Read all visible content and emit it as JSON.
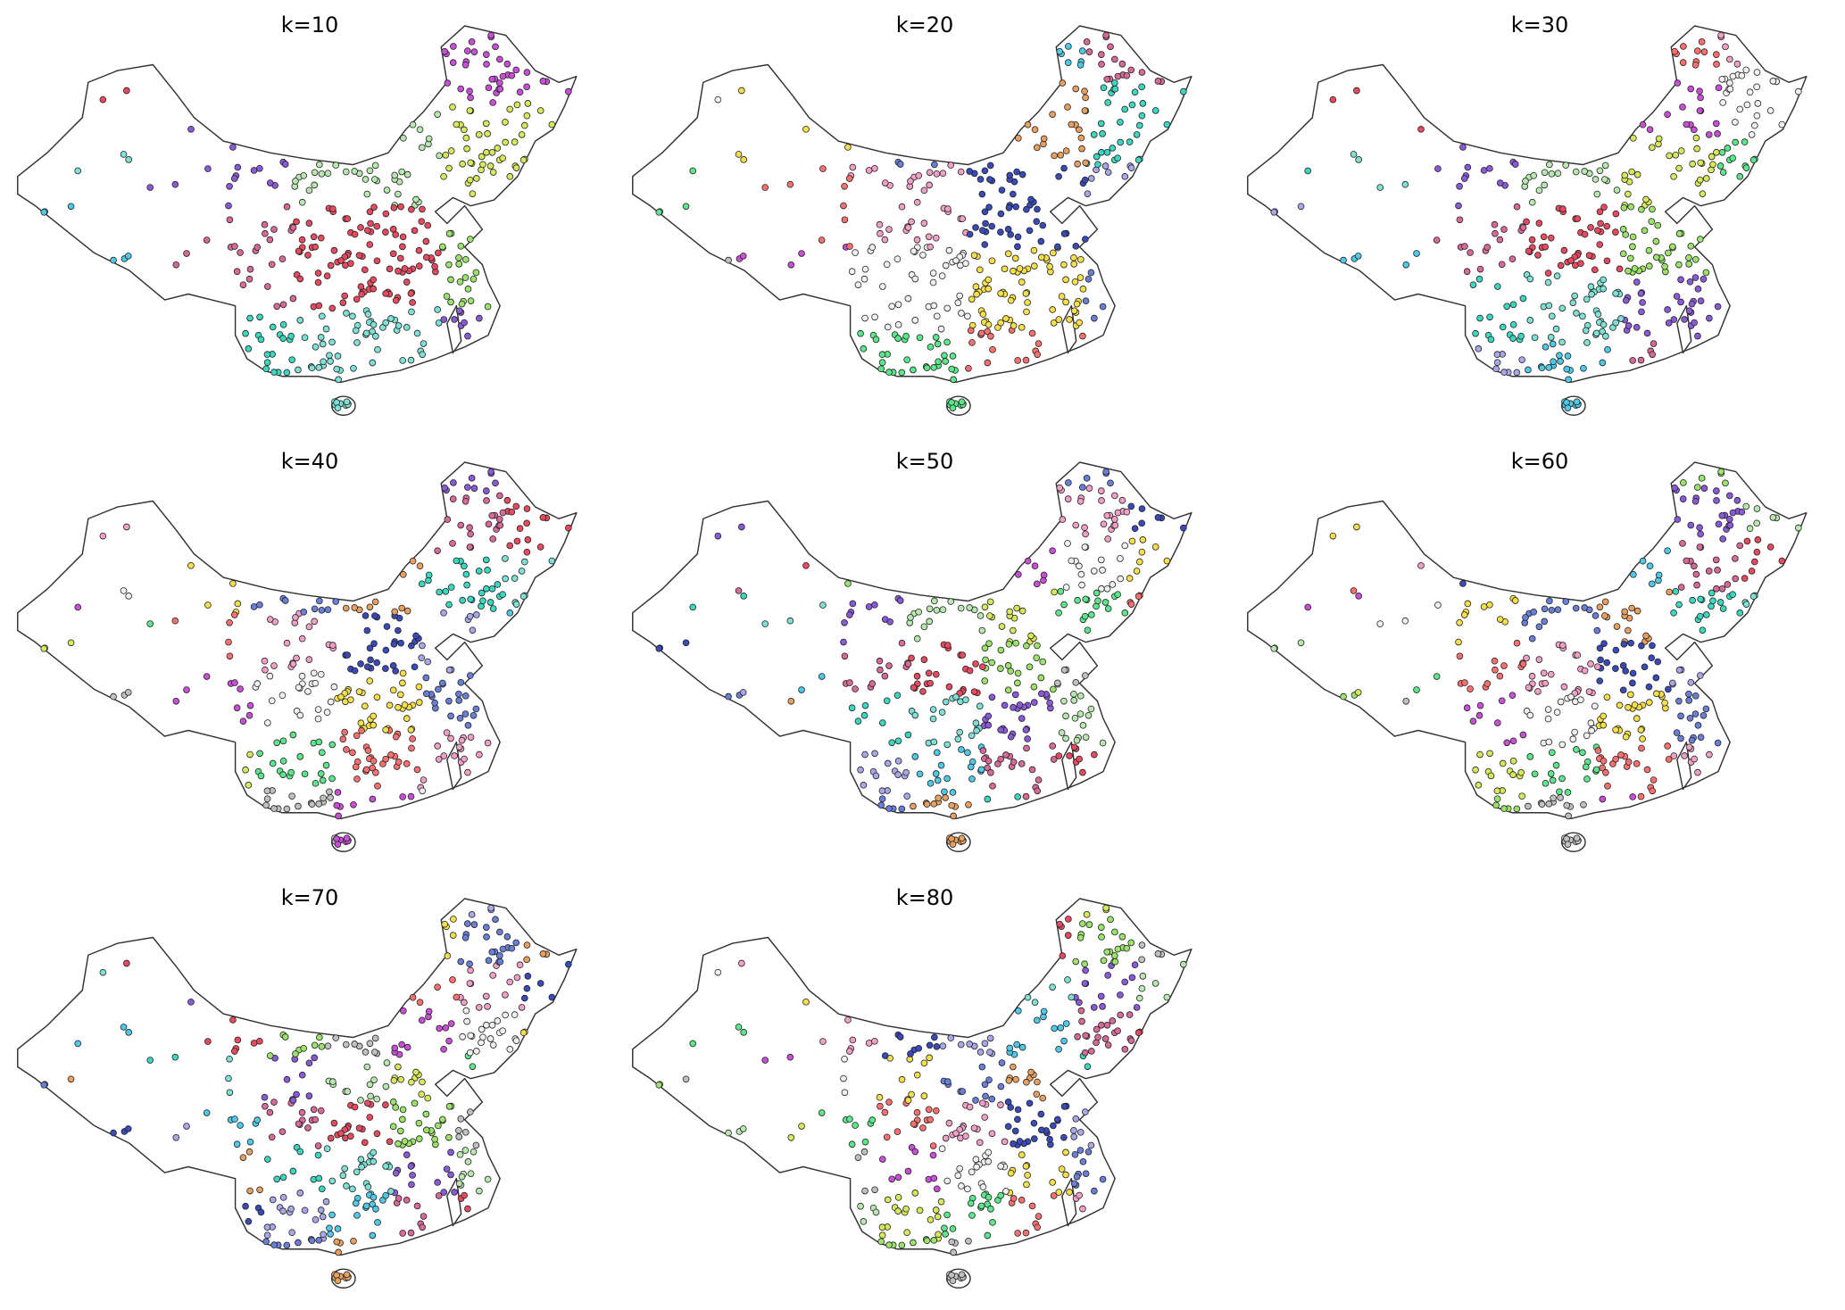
{
  "panels": [
    {
      "title": "k=10"
    },
    {
      "title": "k=20"
    },
    {
      "title": "k=30"
    },
    {
      "title": "k=40"
    },
    {
      "title": "k=50"
    },
    {
      "title": "k=60"
    },
    {
      "title": "k=70"
    },
    {
      "title": "k=80"
    }
  ]
}
